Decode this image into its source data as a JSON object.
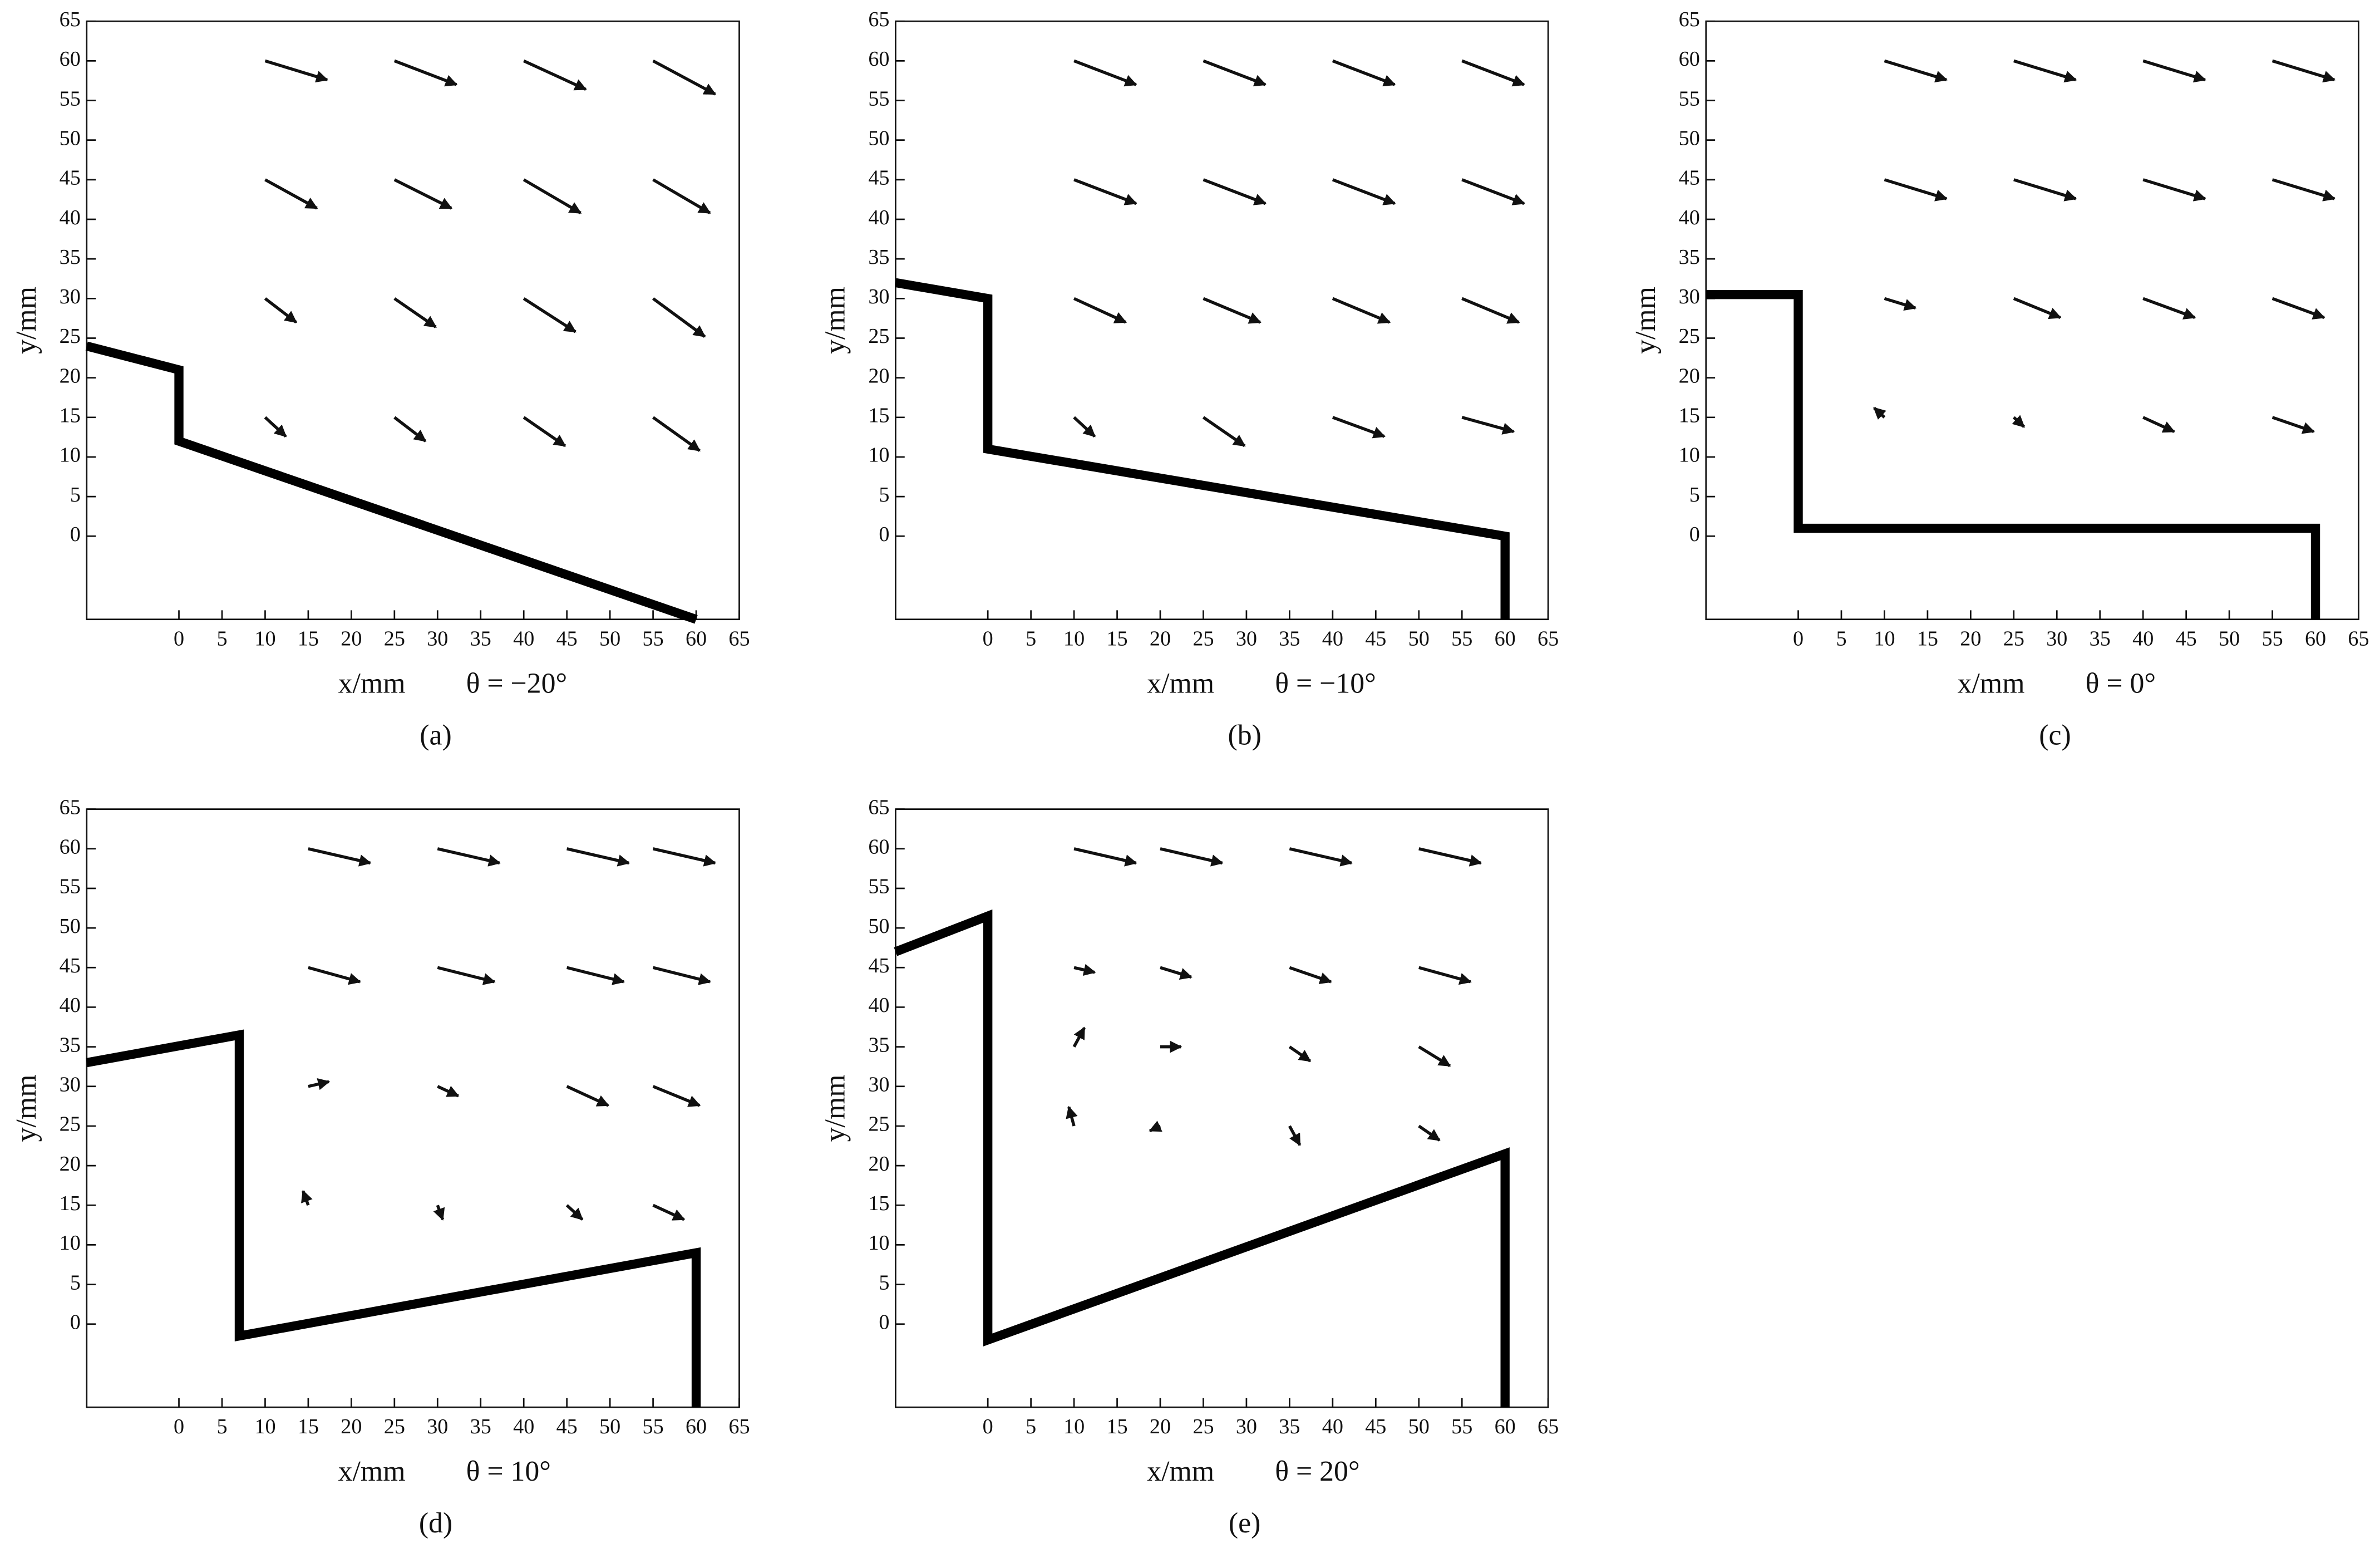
{
  "chart_data": [
    {
      "type": "quiver",
      "caption": "(a)",
      "xlabel": "x/mm",
      "condition": "θ = −20°",
      "ylabel": "y/mm",
      "xlim": [
        -10.7,
        65
      ],
      "ylim": [
        -10.5,
        65
      ],
      "xticks": [
        0,
        5,
        10,
        15,
        20,
        25,
        30,
        35,
        40,
        45,
        50,
        55,
        60,
        65
      ],
      "yticks": [
        0,
        5,
        10,
        15,
        20,
        25,
        30,
        35,
        40,
        45,
        50,
        55,
        60,
        65
      ],
      "wall": {
        "x": [
          -10.7,
          0,
          0,
          60
        ],
        "y": [
          24,
          21,
          12,
          -10.5
        ]
      },
      "vectors": {
        "x": [
          10,
          25,
          40,
          55,
          10,
          25,
          40,
          55,
          10,
          25,
          40,
          55,
          10,
          25,
          40,
          55
        ],
        "y": [
          60,
          60,
          60,
          60,
          45,
          45,
          45,
          45,
          30,
          30,
          30,
          30,
          15,
          15,
          15,
          15
        ],
        "u": [
          6,
          6,
          6,
          6,
          5,
          5.5,
          5.5,
          5.5,
          3,
          4,
          5,
          5,
          2,
          3,
          4,
          4.5
        ],
        "v": [
          -2,
          -2.5,
          -3,
          -3.5,
          -3,
          -3,
          -3.5,
          -3.5,
          -2.5,
          -3,
          -3.5,
          -4,
          -2,
          -2.5,
          -3,
          -3.5
        ]
      }
    },
    {
      "type": "quiver",
      "caption": "(b)",
      "xlabel": "x/mm",
      "condition": "θ = −10°",
      "ylabel": "y/mm",
      "xlim": [
        -10.7,
        65
      ],
      "ylim": [
        -10.5,
        65
      ],
      "xticks": [
        0,
        5,
        10,
        15,
        20,
        25,
        30,
        35,
        40,
        45,
        50,
        55,
        60,
        65
      ],
      "yticks": [
        0,
        5,
        10,
        15,
        20,
        25,
        30,
        35,
        40,
        45,
        50,
        55,
        60,
        65
      ],
      "wall": {
        "x": [
          -10.7,
          0,
          0,
          60,
          60
        ],
        "y": [
          32,
          30,
          11,
          0,
          -10.5
        ]
      },
      "vectors": {
        "x": [
          10,
          25,
          40,
          55,
          10,
          25,
          40,
          55,
          10,
          25,
          40,
          55,
          10,
          25,
          40,
          55
        ],
        "y": [
          60,
          60,
          60,
          60,
          45,
          45,
          45,
          45,
          30,
          30,
          30,
          30,
          15,
          15,
          15,
          15
        ],
        "u": [
          6,
          6,
          6,
          6,
          6,
          6,
          6,
          6,
          5,
          5.5,
          5.5,
          5.5,
          2,
          4,
          5,
          5
        ],
        "v": [
          -2.5,
          -2.5,
          -2.5,
          -2.5,
          -2.5,
          -2.5,
          -2.5,
          -2.5,
          -2.5,
          -2.5,
          -2.5,
          -2.5,
          -2,
          -3,
          -2,
          -1.5
        ]
      }
    },
    {
      "type": "quiver",
      "caption": "(c)",
      "xlabel": "x/mm",
      "condition": "θ = 0°",
      "ylabel": "y/mm",
      "xlim": [
        -10.7,
        65
      ],
      "ylim": [
        -10.5,
        65
      ],
      "xticks": [
        0,
        5,
        10,
        15,
        20,
        25,
        30,
        35,
        40,
        45,
        50,
        55,
        60,
        65
      ],
      "yticks": [
        0,
        5,
        10,
        15,
        20,
        25,
        30,
        35,
        40,
        45,
        50,
        55,
        60,
        65
      ],
      "wall": {
        "x": [
          -10.7,
          0,
          0,
          60,
          60
        ],
        "y": [
          30.5,
          30.5,
          1,
          1,
          -10.5
        ]
      },
      "vectors": {
        "x": [
          10,
          25,
          40,
          55,
          10,
          25,
          40,
          55,
          10,
          25,
          40,
          55,
          10,
          25,
          40,
          55
        ],
        "y": [
          60,
          60,
          60,
          60,
          45,
          45,
          45,
          45,
          30,
          30,
          30,
          30,
          15,
          15,
          15,
          15
        ],
        "u": [
          6,
          6,
          6,
          6,
          6,
          6,
          6,
          6,
          3,
          4.5,
          5,
          5,
          -1,
          1,
          3,
          4
        ],
        "v": [
          -2,
          -2,
          -2,
          -2,
          -2,
          -2,
          -2,
          -2,
          -1,
          -2,
          -2,
          -2,
          1,
          -1,
          -1.5,
          -1.5
        ]
      }
    },
    {
      "type": "quiver",
      "caption": "(d)",
      "xlabel": "x/mm",
      "condition": "θ = 10°",
      "ylabel": "y/mm",
      "xlim": [
        -10.7,
        65
      ],
      "ylim": [
        -10.5,
        65
      ],
      "xticks": [
        0,
        5,
        10,
        15,
        20,
        25,
        30,
        35,
        40,
        45,
        50,
        55,
        60,
        65
      ],
      "yticks": [
        0,
        5,
        10,
        15,
        20,
        25,
        30,
        35,
        40,
        45,
        50,
        55,
        60,
        65
      ],
      "wall": {
        "x": [
          -10.7,
          7,
          7,
          60,
          60
        ],
        "y": [
          33,
          36.5,
          -1.5,
          9,
          -10.5
        ]
      },
      "vectors": {
        "x": [
          15,
          30,
          45,
          55,
          15,
          30,
          45,
          55,
          15,
          30,
          45,
          55,
          15,
          30,
          45,
          55
        ],
        "y": [
          60,
          60,
          60,
          60,
          45,
          45,
          45,
          45,
          30,
          30,
          30,
          30,
          15,
          15,
          15,
          15
        ],
        "u": [
          6,
          6,
          6,
          6,
          5,
          5.5,
          5.5,
          5.5,
          2,
          2,
          4,
          4.5,
          -0.5,
          0.5,
          1.5,
          3
        ],
        "v": [
          -1.5,
          -1.5,
          -1.5,
          -1.5,
          -1.5,
          -1.5,
          -1.5,
          -1.5,
          0.5,
          -1,
          -2,
          -2,
          1.5,
          -1.5,
          -1.5,
          -1.5
        ]
      }
    },
    {
      "type": "quiver",
      "caption": "(e)",
      "xlabel": "x/mm",
      "condition": "θ = 20°",
      "ylabel": "y/mm",
      "xlim": [
        -10.7,
        65
      ],
      "ylim": [
        -10.5,
        65
      ],
      "xticks": [
        0,
        5,
        10,
        15,
        20,
        25,
        30,
        35,
        40,
        45,
        50,
        55,
        60,
        65
      ],
      "yticks": [
        0,
        5,
        10,
        15,
        20,
        25,
        30,
        35,
        40,
        45,
        50,
        55,
        60,
        65
      ],
      "wall": {
        "x": [
          -10.7,
          0,
          0,
          60,
          60
        ],
        "y": [
          47,
          51.5,
          -2,
          21.5,
          -10.5
        ]
      },
      "vectors": {
        "x": [
          10,
          20,
          35,
          50,
          10,
          20,
          35,
          50,
          10,
          20,
          35,
          50,
          10,
          20,
          35,
          50
        ],
        "y": [
          60,
          60,
          60,
          60,
          45,
          45,
          45,
          45,
          35,
          35,
          35,
          35,
          25,
          25,
          25,
          25
        ],
        "u": [
          6,
          6,
          6,
          6,
          2,
          3,
          4,
          5,
          1,
          2,
          2,
          3,
          -0.5,
          -1,
          1,
          2
        ],
        "v": [
          -1.5,
          -1.5,
          -1.5,
          -1.5,
          -0.5,
          -1,
          -1.5,
          -1.5,
          2,
          0,
          -1.5,
          -2,
          2,
          -0.5,
          -2,
          -1.5
        ]
      }
    }
  ]
}
